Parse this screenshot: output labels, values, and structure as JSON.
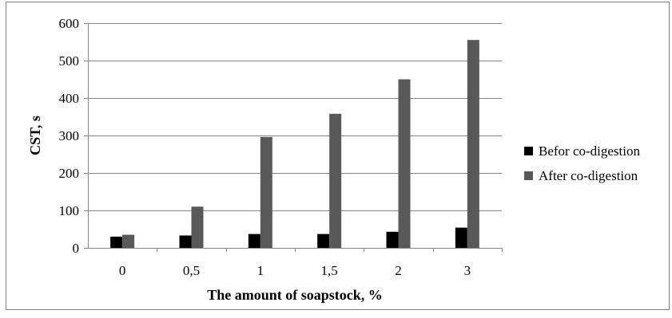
{
  "chart_data": {
    "type": "bar",
    "categories": [
      "0",
      "0,5",
      "1",
      "1,5",
      "2",
      "3"
    ],
    "series": [
      {
        "name": "Befor co-digestion",
        "values": [
          30,
          33,
          37,
          37,
          43,
          54
        ],
        "color": "#000000"
      },
      {
        "name": "After co-digestion",
        "values": [
          35,
          110,
          296,
          358,
          450,
          555
        ],
        "color": "#595959"
      }
    ],
    "xlabel": "The amount of soapstock, %",
    "ylabel": "CST, s",
    "ylim": [
      0,
      600
    ],
    "yticks": [
      0,
      100,
      200,
      300,
      400,
      500,
      600
    ],
    "grid": true,
    "legend": "right"
  }
}
